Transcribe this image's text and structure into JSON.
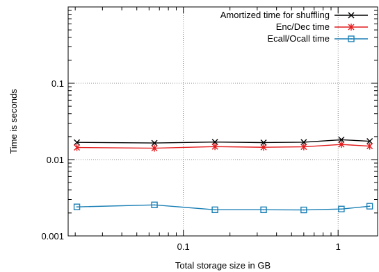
{
  "chart_data": {
    "type": "line",
    "title": "",
    "xlabel": "Total storage size in GB",
    "ylabel": "Time is seconds",
    "xscale": "log",
    "yscale": "log",
    "xlim": [
      0.018,
      1.8
    ],
    "ylim": [
      0.001,
      1.0
    ],
    "grid": true,
    "legend_position": "top-right",
    "x_ticks": [
      {
        "value": 0.1,
        "label": "0.1"
      },
      {
        "value": 1,
        "label": "1"
      }
    ],
    "y_ticks": [
      {
        "value": 0.001,
        "label": "0.001"
      },
      {
        "value": 0.01,
        "label": "0.01"
      },
      {
        "value": 0.1,
        "label": "0.1"
      }
    ],
    "series": [
      {
        "name": "Amortized time for shuffling",
        "color": "#000000",
        "marker": "x",
        "x": [
          0.0205,
          0.065,
          0.16,
          0.33,
          0.6,
          1.05,
          1.6
        ],
        "y": [
          0.0168,
          0.0165,
          0.017,
          0.0167,
          0.0169,
          0.0182,
          0.0174
        ]
      },
      {
        "name": "Enc/Dec time",
        "color": "#e41a1c",
        "marker": "star",
        "x": [
          0.0205,
          0.065,
          0.16,
          0.33,
          0.6,
          1.05,
          1.6
        ],
        "y": [
          0.0144,
          0.0141,
          0.0148,
          0.0145,
          0.0147,
          0.0158,
          0.015
        ]
      },
      {
        "name": "Ecall/Ocall time",
        "color": "#1a7fb5",
        "marker": "square",
        "x": [
          0.0205,
          0.065,
          0.16,
          0.33,
          0.6,
          1.05,
          1.6
        ],
        "y": [
          0.0024,
          0.00255,
          0.0022,
          0.0022,
          0.00219,
          0.00225,
          0.00245
        ]
      }
    ]
  }
}
